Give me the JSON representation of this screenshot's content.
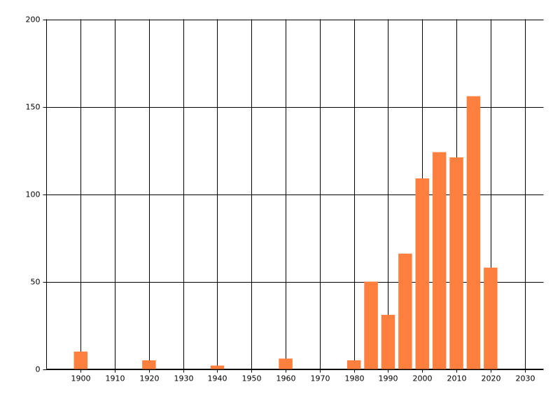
{
  "chart_data": {
    "type": "bar",
    "x": [
      1900,
      1920,
      1940,
      1960,
      1980,
      1985,
      1990,
      1995,
      2000,
      2005,
      2010,
      2015,
      2020
    ],
    "values": [
      10,
      5,
      2,
      6,
      5,
      50,
      31,
      66,
      109,
      124,
      121,
      156,
      58
    ],
    "color": "#ff7f3f",
    "xlim": [
      1890,
      2035.5
    ],
    "xticks": [
      1900,
      1910,
      1920,
      1930,
      1940,
      1950,
      1960,
      1970,
      1980,
      1990,
      2000,
      2010,
      2020,
      2030
    ],
    "ylim": [
      0,
      200
    ],
    "yticks": [
      0,
      50,
      100,
      150,
      200
    ],
    "grid": true
  }
}
